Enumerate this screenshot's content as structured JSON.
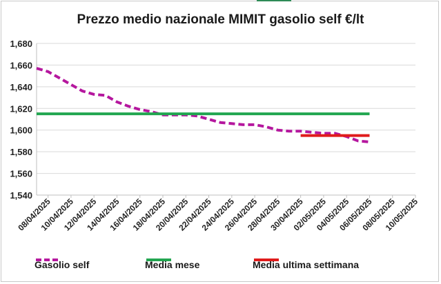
{
  "chart_data": {
    "type": "line",
    "title": "Prezzo medio nazionale MIMIT gasolio self €/lt",
    "xlabel": "",
    "ylabel": "",
    "ylim": [
      1.54,
      1.68
    ],
    "yticks": [
      "1,540",
      "1,560",
      "1,580",
      "1,600",
      "1,620",
      "1,640",
      "1,660",
      "1,680"
    ],
    "xlim": [
      "2025-04-07",
      "2025-05-10"
    ],
    "xticks": [
      "08/04/2025",
      "10/04/2025",
      "12/04/2025",
      "14/04/2025",
      "16/04/2025",
      "18/04/2025",
      "20/04/2025",
      "22/04/2025",
      "24/04/2025",
      "26/04/2025",
      "28/04/2025",
      "30/04/2025",
      "02/05/2025",
      "04/05/2025",
      "06/05/2025",
      "08/05/2025",
      "10/05/2025"
    ],
    "grid": "horizontal",
    "legend_position": "bottom",
    "series": [
      {
        "name": "Gasolio self",
        "color": "#b5179e",
        "style": "dashed",
        "points": [
          [
            "2025-04-07",
            1.657
          ],
          [
            "2025-04-08",
            1.654
          ],
          [
            "2025-04-09",
            1.648
          ],
          [
            "2025-04-10",
            1.642
          ],
          [
            "2025-04-11",
            1.636
          ],
          [
            "2025-04-12",
            1.633
          ],
          [
            "2025-04-13",
            1.632
          ],
          [
            "2025-04-14",
            1.626
          ],
          [
            "2025-04-15",
            1.622
          ],
          [
            "2025-04-16",
            1.619
          ],
          [
            "2025-04-17",
            1.617
          ],
          [
            "2025-04-18",
            1.614
          ],
          [
            "2025-04-19",
            1.614
          ],
          [
            "2025-04-20",
            1.614
          ],
          [
            "2025-04-21",
            1.613
          ],
          [
            "2025-04-22",
            1.61
          ],
          [
            "2025-04-23",
            1.607
          ],
          [
            "2025-04-24",
            1.606
          ],
          [
            "2025-04-25",
            1.605
          ],
          [
            "2025-04-26",
            1.605
          ],
          [
            "2025-04-27",
            1.603
          ],
          [
            "2025-04-28",
            1.6
          ],
          [
            "2025-04-29",
            1.599
          ],
          [
            "2025-04-30",
            1.599
          ],
          [
            "2025-05-01",
            1.598
          ],
          [
            "2025-05-02",
            1.597
          ],
          [
            "2025-05-03",
            1.597
          ],
          [
            "2025-05-04",
            1.594
          ],
          [
            "2025-05-05",
            1.59
          ],
          [
            "2025-05-06",
            1.589
          ]
        ]
      },
      {
        "name": "Media mese",
        "color": "#22a650",
        "style": "solid",
        "points": [
          [
            "2025-04-07",
            1.615
          ],
          [
            "2025-05-06",
            1.615
          ]
        ]
      },
      {
        "name": "Media ultima settimana",
        "color": "#e01b1b",
        "style": "solid",
        "points": [
          [
            "2025-04-30",
            1.595
          ],
          [
            "2025-05-06",
            1.595
          ]
        ]
      }
    ]
  }
}
